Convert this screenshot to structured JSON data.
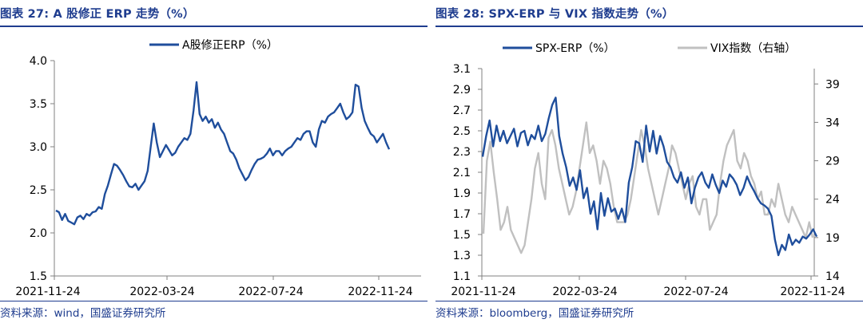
{
  "left": {
    "title": "图表 27:  A 股修正 ERP 走势（%）",
    "source": "资料来源：wind，国盛证券研究所"
  },
  "right": {
    "title": "图表 28:  SPX-ERP 与 VIX 指数走势（%）",
    "source": "资料来源：bloomberg，国盛证券研究所"
  },
  "colors": {
    "blue": "#1f4e9c",
    "gray": "#c0c0c0",
    "text": "#1f3d8f"
  },
  "chart_data": [
    {
      "type": "line",
      "x_labels": [
        "2021-11-24",
        "2022-03-24",
        "2022-07-24",
        "2022-11-24"
      ],
      "ylim": [
        1.5,
        4.0
      ],
      "y_ticks": [
        "1.5",
        "2.0",
        "2.5",
        "3.0",
        "3.5",
        "4.0"
      ],
      "series": [
        {
          "name": "A股修正ERP（%）",
          "color": "#1f4e9c",
          "values": [
            2.26,
            2.24,
            2.15,
            2.22,
            2.14,
            2.12,
            2.1,
            2.18,
            2.2,
            2.16,
            2.22,
            2.2,
            2.24,
            2.25,
            2.3,
            2.28,
            2.45,
            2.55,
            2.68,
            2.8,
            2.78,
            2.73,
            2.67,
            2.6,
            2.54,
            2.53,
            2.57,
            2.5,
            2.55,
            2.6,
            2.72,
            3.0,
            3.27,
            3.05,
            2.88,
            2.95,
            3.02,
            2.96,
            2.9,
            2.93,
            3.0,
            3.05,
            3.1,
            3.08,
            3.15,
            3.42,
            3.75,
            3.38,
            3.3,
            3.35,
            3.28,
            3.32,
            3.22,
            3.28,
            3.2,
            3.15,
            3.05,
            2.95,
            2.92,
            2.85,
            2.75,
            2.68,
            2.61,
            2.65,
            2.73,
            2.8,
            2.85,
            2.86,
            2.88,
            2.92,
            2.98,
            2.9,
            2.95,
            2.95,
            2.9,
            2.95,
            2.98,
            3.0,
            3.05,
            3.1,
            3.08,
            3.15,
            3.18,
            3.18,
            3.05,
            3.0,
            3.2,
            3.3,
            3.28,
            3.35,
            3.38,
            3.4,
            3.45,
            3.5,
            3.4,
            3.32,
            3.35,
            3.4,
            3.72,
            3.7,
            3.45,
            3.3,
            3.22,
            3.15,
            3.12,
            3.05,
            3.1,
            3.15,
            3.05,
            2.97
          ]
        }
      ]
    },
    {
      "type": "line",
      "x_labels": [
        "2021-11-24",
        "2022-03-24",
        "2022-07-24",
        "2022-11-24"
      ],
      "ylim": [
        1.1,
        3.1
      ],
      "y_ticks": [
        "1.1",
        "1.3",
        "1.5",
        "1.7",
        "1.9",
        "2.1",
        "2.3",
        "2.5",
        "2.7",
        "2.9",
        "3.1"
      ],
      "y2lim": [
        14,
        41
      ],
      "y2_ticks": [
        "14",
        "19",
        "24",
        "29",
        "34",
        "39"
      ],
      "series": [
        {
          "name": "SPX-ERP（%）",
          "axis": "left",
          "color": "#1f4e9c",
          "values": [
            2.25,
            2.45,
            2.6,
            2.35,
            2.55,
            2.4,
            2.5,
            2.38,
            2.45,
            2.52,
            2.35,
            2.48,
            2.5,
            2.36,
            2.46,
            2.42,
            2.55,
            2.4,
            2.47,
            2.62,
            2.75,
            2.82,
            2.45,
            2.28,
            2.15,
            1.97,
            2.05,
            1.93,
            2.12,
            1.85,
            1.95,
            1.7,
            1.82,
            1.55,
            1.9,
            1.68,
            1.85,
            1.72,
            1.75,
            1.65,
            1.75,
            1.62,
            2.0,
            2.15,
            2.4,
            2.38,
            2.2,
            2.55,
            2.3,
            2.5,
            2.28,
            2.45,
            2.35,
            2.2,
            2.15,
            2.05,
            2.0,
            2.1,
            1.95,
            2.05,
            1.8,
            1.95,
            2.05,
            2.1,
            2.0,
            1.95,
            2.08,
            1.98,
            1.9,
            2.02,
            1.96,
            2.08,
            2.04,
            1.98,
            1.88,
            1.95,
            2.06,
            1.98,
            1.92,
            1.85,
            1.8,
            1.78,
            1.75,
            1.68,
            1.45,
            1.3,
            1.4,
            1.35,
            1.5,
            1.4,
            1.45,
            1.42,
            1.48,
            1.46,
            1.5,
            1.55,
            1.48
          ]
        },
        {
          "name": "VIX指数（右轴）",
          "axis": "right",
          "color": "#c0c0c0",
          "values": [
            19.5,
            29,
            31.5,
            27.5,
            24,
            20,
            21,
            23,
            20,
            19,
            18,
            17,
            18,
            21,
            24,
            28,
            30,
            26,
            24,
            32,
            33,
            31,
            28,
            26,
            24,
            22,
            23,
            25,
            28,
            31,
            34,
            30,
            31,
            29,
            26,
            29,
            28,
            26,
            23,
            21,
            21,
            21,
            22,
            24,
            27,
            30,
            33,
            31,
            28,
            26,
            24,
            22,
            24,
            26,
            28,
            31,
            30,
            28,
            26,
            24,
            26,
            27,
            23,
            22,
            24,
            24,
            20,
            21,
            22,
            26,
            29,
            31,
            32,
            33,
            29,
            28,
            30,
            29,
            27,
            26,
            24,
            25,
            22,
            22,
            24,
            23,
            26,
            24,
            22,
            21,
            23,
            22,
            21,
            20,
            19,
            21,
            19
          ]
        }
      ]
    }
  ]
}
